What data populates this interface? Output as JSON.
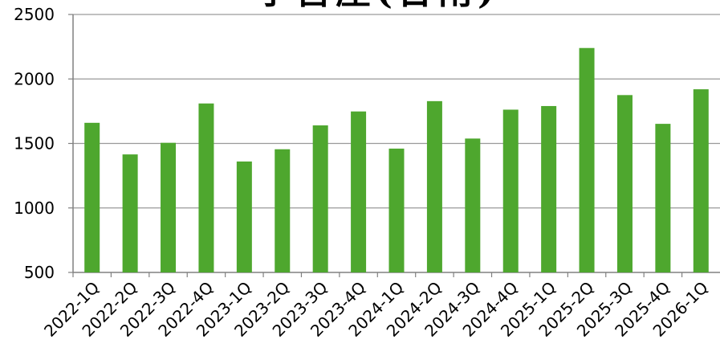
{
  "chart_data": {
    "type": "bar",
    "title": "予售屋(台南)",
    "xlabel": "",
    "ylabel": "",
    "ylim": [
      500,
      2500
    ],
    "yticks": [
      500,
      1000,
      1500,
      2000,
      2500
    ],
    "grid": true,
    "legend": "none",
    "bar_color": "#4ea72e",
    "categories": [
      "2022-1Q",
      "2022-2Q",
      "2022-3Q",
      "2022-4Q",
      "2023-1Q",
      "2023-2Q",
      "2023-3Q",
      "2023-4Q",
      "2024-1Q",
      "2024-2Q",
      "2024-3Q",
      "2024-4Q",
      "2025-1Q",
      "2025-2Q",
      "2025-3Q",
      "2025-4Q",
      "2026-1Q"
    ],
    "values": [
      1660,
      1415,
      1505,
      1810,
      1360,
      1455,
      1640,
      1748,
      1460,
      1828,
      1538,
      1762,
      1790,
      2240,
      1875,
      1652,
      1920
    ]
  }
}
